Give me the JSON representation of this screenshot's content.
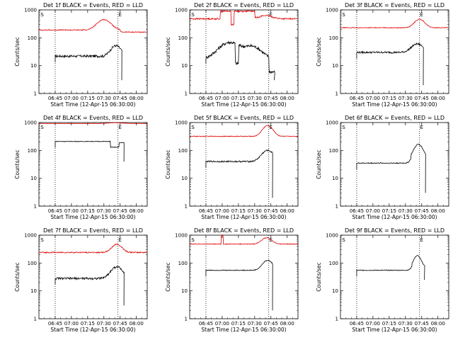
{
  "chart_data": [
    {
      "type": "line",
      "title": "Det 1f BLACK = Events, RED = LLD",
      "xlabel": "Start Time (12-Apr-15 06:30:00)",
      "ylabel": "Counts/sec",
      "yscale": "log",
      "ylim": [
        1,
        1000
      ],
      "x_ticks": [
        "06:45",
        "07:00",
        "07:15",
        "07:30",
        "07:45",
        "08:00"
      ],
      "y_ticks": [
        "1",
        "10",
        "100",
        "1000"
      ],
      "markers": [
        "S",
        "E"
      ],
      "series": [
        {
          "color": "#000000",
          "shape": "d1"
        },
        {
          "color": "#dd0000",
          "shape": "r1"
        }
      ]
    },
    {
      "type": "line",
      "title": "Det 2f BLACK = Events, RED = LLD",
      "xlabel": "Start Time (12-Apr-15 06:30:00)",
      "ylabel": "Counts/sec",
      "yscale": "log",
      "ylim": [
        1,
        1000
      ],
      "x_ticks": [
        "06:45",
        "07:00",
        "07:15",
        "07:30",
        "07:45",
        "08:00"
      ],
      "y_ticks": [
        "1",
        "10",
        "100",
        "1000"
      ],
      "markers": [
        "S",
        "E"
      ],
      "series": [
        {
          "color": "#000000",
          "shape": "d2"
        },
        {
          "color": "#dd0000",
          "shape": "r2"
        }
      ]
    },
    {
      "type": "line",
      "title": "Det 3f BLACK = Events, RED = LLD",
      "xlabel": "Start Time (12-Apr-15 06:30:00)",
      "ylabel": "Counts/sec",
      "yscale": "log",
      "ylim": [
        1,
        1000
      ],
      "x_ticks": [
        "06:45",
        "07:00",
        "07:15",
        "07:30",
        "07:45",
        "08:00"
      ],
      "y_ticks": [
        "1",
        "10",
        "100",
        "1000"
      ],
      "markers": [
        "S",
        "E"
      ],
      "series": [
        {
          "color": "#000000",
          "shape": "d3"
        },
        {
          "color": "#dd0000",
          "shape": "r3"
        }
      ]
    },
    {
      "type": "line",
      "title": "Det 4f BLACK = Events, RED = LLD",
      "xlabel": "Start Time (12-Apr-15 06:30:00)",
      "ylabel": "Counts/sec",
      "yscale": "log",
      "ylim": [
        1,
        1000
      ],
      "x_ticks": [
        "06:45",
        "07:00",
        "07:15",
        "07:30",
        "07:45",
        "08:00"
      ],
      "y_ticks": [
        "1",
        "10",
        "100",
        "1000"
      ],
      "markers": [
        "S",
        "E"
      ],
      "series": [
        {
          "color": "#000000",
          "shape": "d4"
        },
        {
          "color": "#dd0000",
          "shape": "r4"
        }
      ]
    },
    {
      "type": "line",
      "title": "Det 5f BLACK = Events, RED = LLD",
      "xlabel": "Start Time (12-Apr-15 06:30:00)",
      "ylabel": "Counts/sec",
      "yscale": "log",
      "ylim": [
        1,
        1000
      ],
      "x_ticks": [
        "06:45",
        "07:00",
        "07:15",
        "07:30",
        "07:45",
        "08:00"
      ],
      "y_ticks": [
        "1",
        "10",
        "100",
        "1000"
      ],
      "markers": [
        "S",
        "E"
      ],
      "series": [
        {
          "color": "#000000",
          "shape": "d5"
        },
        {
          "color": "#dd0000",
          "shape": "r5"
        }
      ]
    },
    {
      "type": "line",
      "title": "Det 6f BLACK = Events, RED = LLD",
      "xlabel": "Start Time (12-Apr-15 06:30:00)",
      "ylabel": "Counts/sec",
      "yscale": "log",
      "ylim": [
        1,
        1000
      ],
      "x_ticks": [
        "06:45",
        "07:00",
        "07:15",
        "07:30",
        "07:45",
        "08:00"
      ],
      "y_ticks": [
        "1",
        "10",
        "100",
        "1000"
      ],
      "markers": [
        "S",
        "E"
      ],
      "series": [
        {
          "color": "#000000",
          "shape": "d6"
        }
      ]
    },
    {
      "type": "line",
      "title": "Det 7f BLACK = Events, RED = LLD",
      "xlabel": "Start Time (12-Apr-15 06:30:00)",
      "ylabel": "Counts/sec",
      "yscale": "log",
      "ylim": [
        1,
        1000
      ],
      "x_ticks": [
        "06:45",
        "07:00",
        "07:15",
        "07:30",
        "07:45",
        "08:00"
      ],
      "y_ticks": [
        "1",
        "10",
        "100",
        "1000"
      ],
      "markers": [
        "S",
        "E"
      ],
      "series": [
        {
          "color": "#000000",
          "shape": "d7"
        },
        {
          "color": "#dd0000",
          "shape": "r7"
        }
      ]
    },
    {
      "type": "line",
      "title": "Det 8f BLACK = Events, RED = LLD",
      "xlabel": "Start Time (12-Apr-15 06:30:00)",
      "ylabel": "Counts/sec",
      "yscale": "log",
      "ylim": [
        1,
        1000
      ],
      "x_ticks": [
        "06:45",
        "07:00",
        "07:15",
        "07:30",
        "07:45",
        "08:00"
      ],
      "y_ticks": [
        "1",
        "10",
        "100",
        "1000"
      ],
      "markers": [
        "S",
        "E"
      ],
      "series": [
        {
          "color": "#000000",
          "shape": "d8"
        },
        {
          "color": "#dd0000",
          "shape": "r8"
        }
      ]
    },
    {
      "type": "line",
      "title": "Det 9f BLACK = Events, RED = LLD",
      "xlabel": "Start Time (12-Apr-15 06:30:00)",
      "ylabel": "Counts/sec",
      "yscale": "log",
      "ylim": [
        1,
        1000
      ],
      "x_ticks": [
        "06:45",
        "07:00",
        "07:15",
        "07:30",
        "07:45",
        "08:00"
      ],
      "y_ticks": [
        "1",
        "10",
        "100",
        "1000"
      ],
      "markers": [
        "S",
        "E"
      ],
      "series": [
        {
          "color": "#000000",
          "shape": "d9"
        }
      ]
    }
  ]
}
